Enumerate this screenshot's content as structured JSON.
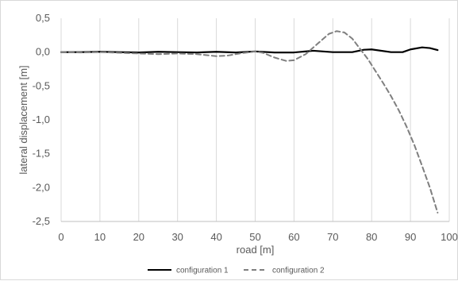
{
  "chart_data": {
    "type": "line",
    "xlabel": "road [m]",
    "ylabel": "lateral displacement [m]",
    "xlim": [
      0,
      100
    ],
    "ylim": [
      -2.5,
      0.5
    ],
    "x_ticks": [
      0,
      10,
      20,
      30,
      40,
      50,
      60,
      70,
      80,
      90,
      100
    ],
    "y_ticks": [
      0.5,
      0.0,
      -0.5,
      -1.0,
      -1.5,
      -2.0,
      -2.5
    ],
    "x_tick_labels": [
      "0",
      "10",
      "20",
      "30",
      "40",
      "50",
      "60",
      "70",
      "80",
      "90",
      "100"
    ],
    "y_tick_labels": [
      "0,5",
      "0,0",
      "-0,5",
      "-1,0",
      "-1,5",
      "-2,0",
      "-2,5"
    ],
    "grid": "vertical",
    "legend_position": "bottom",
    "series": [
      {
        "name": "configuration 1",
        "style": "solid",
        "color": "#000000",
        "x": [
          0,
          5,
          10,
          15,
          20,
          25,
          30,
          35,
          40,
          45,
          50,
          55,
          60,
          65,
          70,
          75,
          78,
          80,
          85,
          88,
          90,
          93,
          95,
          97
        ],
        "y": [
          0.0,
          0.0,
          0.005,
          0.0,
          -0.005,
          0.005,
          0.0,
          -0.005,
          0.005,
          -0.005,
          0.01,
          -0.005,
          -0.005,
          0.02,
          0.0,
          0.0,
          0.035,
          0.04,
          0.0,
          0.0,
          0.04,
          0.07,
          0.06,
          0.03
        ]
      },
      {
        "name": "configuration 2",
        "style": "dashed",
        "color": "#7f7f7f",
        "x": [
          0,
          5,
          10,
          15,
          20,
          25,
          30,
          35,
          40,
          43,
          46,
          50,
          52,
          55,
          58,
          60,
          63,
          66,
          69,
          71,
          73,
          75,
          77,
          79,
          81,
          83,
          85,
          87,
          89,
          91,
          93,
          95,
          97
        ],
        "y": [
          0.0,
          -0.005,
          0.0,
          -0.01,
          -0.02,
          -0.03,
          -0.02,
          -0.03,
          -0.06,
          -0.05,
          -0.02,
          0.01,
          -0.01,
          -0.08,
          -0.13,
          -0.12,
          -0.03,
          0.12,
          0.27,
          0.31,
          0.29,
          0.2,
          0.05,
          -0.1,
          -0.28,
          -0.46,
          -0.65,
          -0.86,
          -1.1,
          -1.37,
          -1.68,
          -2.0,
          -2.37
        ]
      }
    ]
  }
}
